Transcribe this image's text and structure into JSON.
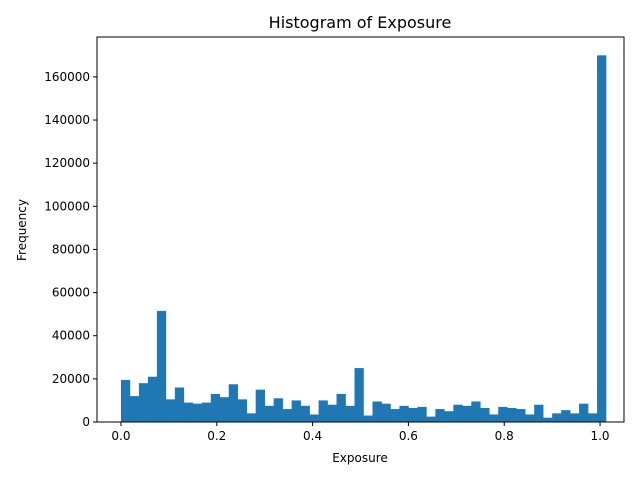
{
  "chart_data": {
    "type": "bar",
    "title": "Histogram of Exposure",
    "xlabel": "Exposure",
    "ylabel": "Frequency",
    "xlim": [
      -0.05,
      1.05
    ],
    "ylim": [
      0,
      178500
    ],
    "x_ticks": [
      0.0,
      0.2,
      0.4,
      0.6,
      0.8,
      1.0
    ],
    "x_tick_labels": [
      "0.0",
      "0.2",
      "0.4",
      "0.6",
      "0.8",
      "1.0"
    ],
    "y_ticks": [
      0,
      20000,
      40000,
      60000,
      80000,
      100000,
      120000,
      140000,
      160000
    ],
    "y_tick_labels": [
      "0",
      "20000",
      "40000",
      "60000",
      "80000",
      "100000",
      "120000",
      "140000",
      "160000"
    ],
    "bin_edges_start": 0.0,
    "bin_width": 0.01875,
    "values": [
      19500,
      12000,
      18000,
      21000,
      51500,
      10500,
      16000,
      9000,
      8500,
      9000,
      13000,
      11500,
      17500,
      10500,
      4000,
      15000,
      7500,
      11000,
      6000,
      10000,
      7500,
      3500,
      10000,
      8000,
      13000,
      7500,
      25000,
      3000,
      9500,
      8500,
      6000,
      7500,
      6500,
      7000,
      2500,
      6000,
      5000,
      8000,
      7500,
      9500,
      6500,
      3500,
      7000,
      6500,
      6000,
      3500,
      8000,
      2000,
      4000,
      5500,
      4000,
      8500,
      4000,
      170000
    ],
    "bar_color": "#1f77b4"
  }
}
